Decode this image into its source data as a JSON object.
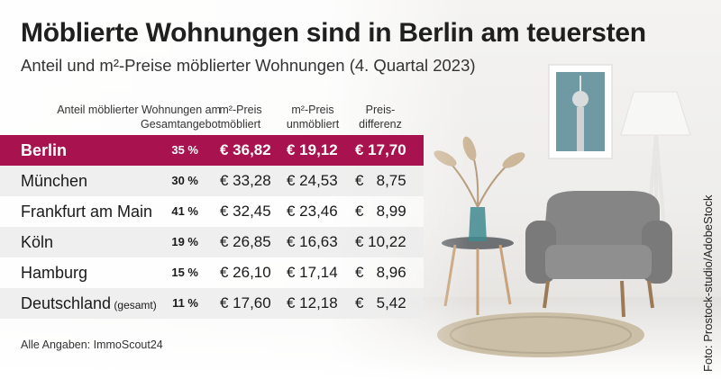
{
  "title": "Möblierte Wohnungen sind in Berlin am teuersten",
  "subtitle": "Anteil und m²-Preise möblierter Wohnungen (4. Quartal 2023)",
  "columns": {
    "share": "Anteil möblierter Wohnungen am Gesamtangebot",
    "furnished": "m²-Preis möbliert",
    "unfurnished": "m²-Preis unmöbliert",
    "difference": "Preis-differenz"
  },
  "colors": {
    "highlight": "#a8124e",
    "row_alt": "#ececec"
  },
  "chart_data": {
    "type": "table",
    "title": "Möblierte Wohnungen sind in Berlin am teuersten",
    "subtitle": "Anteil und m²-Preise möblierter Wohnungen (4. Quartal 2023)",
    "headers": [
      "Anteil möblierter Wohnungen am Gesamtangebot",
      "m²-Preis möbliert",
      "m²-Preis unmöbliert",
      "Preis-differenz"
    ],
    "rows": [
      {
        "city": "Berlin",
        "note": "",
        "share": "35 %",
        "furnished": "€ 36,82",
        "unfurnished": "€ 19,12",
        "difference": "€ 17,70",
        "highlight": true
      },
      {
        "city": "München",
        "note": "",
        "share": "30 %",
        "furnished": "€ 33,28",
        "unfurnished": "€ 24,53",
        "difference": "€   8,75",
        "highlight": false
      },
      {
        "city": "Frankfurt am Main",
        "note": "",
        "share": "41 %",
        "furnished": "€ 32,45",
        "unfurnished": "€ 23,46",
        "difference": "€   8,99",
        "highlight": false
      },
      {
        "city": "Köln",
        "note": "",
        "share": "19 %",
        "furnished": "€ 26,85",
        "unfurnished": "€ 16,63",
        "difference": "€ 10,22",
        "highlight": false
      },
      {
        "city": "Hamburg",
        "note": "",
        "share": "15 %",
        "furnished": "€ 26,10",
        "unfurnished": "€ 17,14",
        "difference": "€   8,96",
        "highlight": false
      },
      {
        "city": "Deutschland",
        "note": "(gesamt)",
        "share": "11 %",
        "furnished": "€ 17,60",
        "unfurnished": "€ 12,18",
        "difference": "€   5,42",
        "highlight": false
      }
    ]
  },
  "source": "Alle Angaben: ImmoScout24",
  "credit": "Foto: Prostock-studio/AdobeStock"
}
